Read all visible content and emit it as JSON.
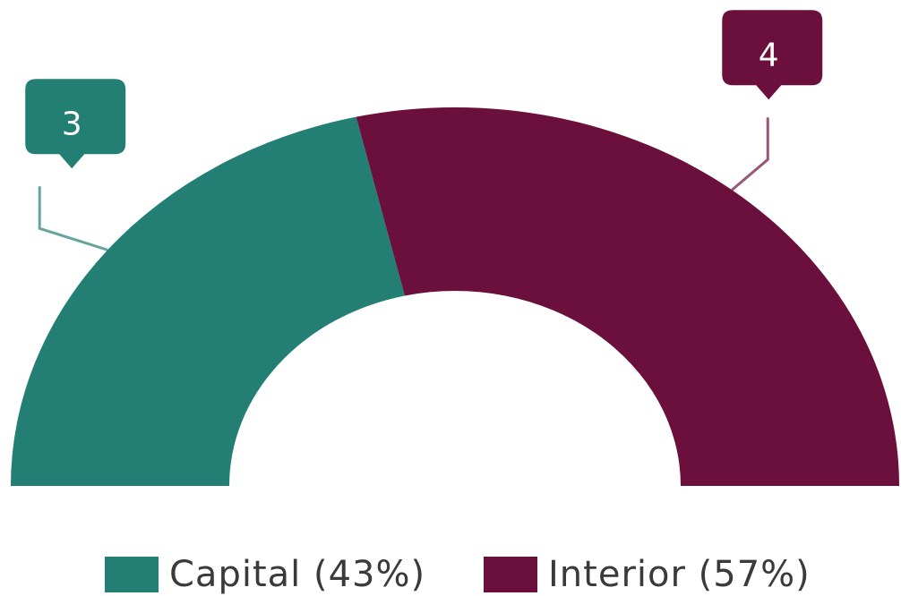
{
  "chart_data": {
    "type": "pie",
    "half_donut": true,
    "categories": [
      "Capital (43%)",
      "Interior (57%)"
    ],
    "values": [
      3,
      4
    ],
    "colors": [
      "#237f74",
      "#6b103c"
    ],
    "legend": "bottom"
  }
}
